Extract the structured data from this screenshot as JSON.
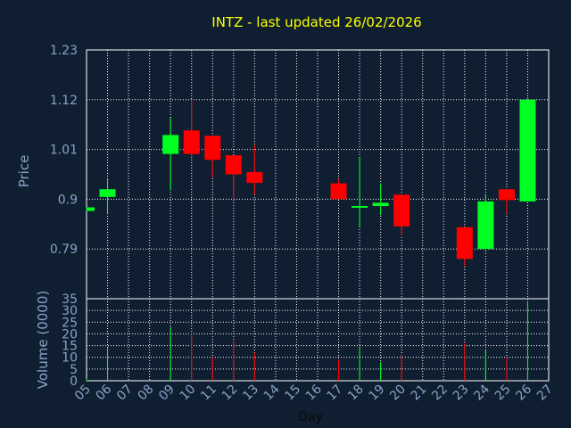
{
  "title": "INTZ - last updated 26/02/2026",
  "colors": {
    "background": "#0f1f31",
    "title": "#ffff00",
    "axis_text": "#8aa2c6",
    "grid": "#ffffff",
    "up": "#00ff22",
    "down": "#ff0000"
  },
  "chart_data": [
    {
      "type": "candlestick",
      "ylabel": "Price",
      "ylim": [
        0.68,
        1.23
      ],
      "yticks": [
        "1.23",
        "1.12",
        "1.01",
        "0.9",
        "0.79"
      ],
      "x": [
        "05",
        "06",
        "07",
        "08",
        "09",
        "10",
        "11",
        "12",
        "13",
        "14",
        "15",
        "16",
        "17",
        "18",
        "19",
        "20",
        "21",
        "22",
        "23",
        "24",
        "25",
        "26",
        "27"
      ],
      "candles": [
        {
          "day": "05",
          "open": 0.874,
          "high": 0.882,
          "low": 0.874,
          "close": 0.882
        },
        {
          "day": "06",
          "open": 0.905,
          "high": 0.945,
          "low": 0.868,
          "close": 0.922
        },
        {
          "day": "09",
          "open": 1.0,
          "high": 1.08,
          "low": 0.92,
          "close": 1.042
        },
        {
          "day": "10",
          "open": 1.052,
          "high": 1.12,
          "low": 0.995,
          "close": 1.0
        },
        {
          "day": "11",
          "open": 1.04,
          "high": 1.04,
          "low": 0.948,
          "close": 0.987
        },
        {
          "day": "12",
          "open": 0.997,
          "high": 0.997,
          "low": 0.902,
          "close": 0.955
        },
        {
          "day": "13",
          "open": 0.96,
          "high": 1.02,
          "low": 0.91,
          "close": 0.936
        },
        {
          "day": "17",
          "open": 0.935,
          "high": 0.945,
          "low": 0.902,
          "close": 0.9
        },
        {
          "day": "18",
          "open": 0.885,
          "high": 0.992,
          "low": 0.84,
          "close": 0.885
        },
        {
          "day": "19",
          "open": 0.885,
          "high": 0.935,
          "low": 0.865,
          "close": 0.892
        },
        {
          "day": "20",
          "open": 0.91,
          "high": 0.91,
          "low": 0.82,
          "close": 0.84
        },
        {
          "day": "23",
          "open": 0.838,
          "high": 0.838,
          "low": 0.752,
          "close": 0.768
        },
        {
          "day": "24",
          "open": 0.79,
          "high": 0.91,
          "low": 0.79,
          "close": 0.895
        },
        {
          "day": "25",
          "open": 0.922,
          "high": 0.922,
          "low": 0.868,
          "close": 0.898
        },
        {
          "day": "26",
          "open": 0.895,
          "high": 1.125,
          "low": 0.895,
          "close": 1.12
        }
      ]
    },
    {
      "type": "bar",
      "ylabel": "Volume (0000)",
      "xlabel": "Day",
      "ylim": [
        0,
        35
      ],
      "yticks": [
        "35",
        "30",
        "25",
        "20",
        "15",
        "10",
        "5",
        "0"
      ],
      "x": [
        "05",
        "06",
        "07",
        "08",
        "09",
        "10",
        "11",
        "12",
        "13",
        "14",
        "15",
        "16",
        "17",
        "18",
        "19",
        "20",
        "21",
        "22",
        "23",
        "24",
        "25",
        "26",
        "27"
      ],
      "bars": [
        {
          "day": "05",
          "value": 1,
          "direction": "up"
        },
        {
          "day": "06",
          "value": 14,
          "direction": "up"
        },
        {
          "day": "09",
          "value": 23,
          "direction": "up"
        },
        {
          "day": "10",
          "value": 20,
          "direction": "down"
        },
        {
          "day": "11",
          "value": 10,
          "direction": "down"
        },
        {
          "day": "12",
          "value": 17,
          "direction": "down"
        },
        {
          "day": "13",
          "value": 12,
          "direction": "down"
        },
        {
          "day": "17",
          "value": 9,
          "direction": "down"
        },
        {
          "day": "18",
          "value": 14,
          "direction": "up"
        },
        {
          "day": "19",
          "value": 8,
          "direction": "up"
        },
        {
          "day": "20",
          "value": 11,
          "direction": "down"
        },
        {
          "day": "23",
          "value": 16,
          "direction": "down"
        },
        {
          "day": "24",
          "value": 13,
          "direction": "up"
        },
        {
          "day": "25",
          "value": 10,
          "direction": "down"
        },
        {
          "day": "26",
          "value": 34,
          "direction": "up"
        }
      ]
    }
  ]
}
